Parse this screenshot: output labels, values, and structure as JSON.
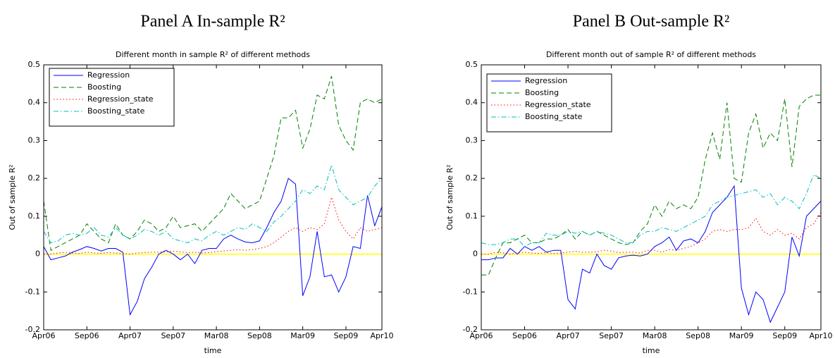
{
  "chart_data": [
    {
      "type": "line",
      "panel_title": "Panel A In-sample R²",
      "title": "Different month in sample R² of different methods",
      "xlabel": "time",
      "ylabel": "Out of sample R²",
      "x": [
        0,
        1,
        2,
        3,
        4,
        5,
        6,
        7,
        8,
        9,
        10,
        11,
        12,
        13,
        14,
        15,
        16,
        17,
        18,
        19,
        20,
        21,
        22,
        23,
        24,
        25,
        26,
        27,
        28,
        29,
        30,
        31,
        32,
        33,
        34,
        35,
        36,
        37,
        38,
        39,
        40,
        41,
        42,
        43,
        44,
        45,
        46,
        47
      ],
      "xlim": [
        0,
        47
      ],
      "xticks": [
        {
          "value": 0,
          "label": "Apr06"
        },
        {
          "value": 6,
          "label": "Sep06"
        },
        {
          "value": 12,
          "label": "Apr07"
        },
        {
          "value": 18,
          "label": "Sep07"
        },
        {
          "value": 24,
          "label": "Mar08"
        },
        {
          "value": 30,
          "label": "Sep08"
        },
        {
          "value": 36,
          "label": "Mar09"
        },
        {
          "value": 42,
          "label": "Sep09"
        },
        {
          "value": 47,
          "label": "Apr10"
        }
      ],
      "ylim": [
        -0.2,
        0.5
      ],
      "yticks": [
        -0.2,
        -0.1,
        0,
        0.1,
        0.2,
        0.3,
        0.4,
        0.5
      ],
      "hline": 0,
      "hline_color": "#ffff00",
      "legend": "upper left",
      "grid": false,
      "series": [
        {
          "name": "Regression",
          "color": "#0000ff",
          "dash": "solid",
          "values": [
            0.02,
            -0.015,
            -0.01,
            -0.005,
            0.005,
            0.012,
            0.02,
            0.015,
            0.008,
            0.015,
            0.015,
            0.005,
            -0.16,
            -0.125,
            -0.065,
            -0.035,
            0.0,
            0.01,
            0.0,
            -0.015,
            0.0,
            -0.025,
            0.01,
            0.015,
            0.015,
            0.04,
            0.05,
            0.04,
            0.032,
            0.03,
            0.035,
            0.07,
            0.11,
            0.14,
            0.2,
            0.185,
            -0.11,
            -0.06,
            0.06,
            -0.06,
            -0.055,
            -0.1,
            -0.06,
            0.02,
            0.015,
            0.155,
            0.075,
            0.125
          ]
        },
        {
          "name": "Boosting",
          "color": "#008000",
          "dash": "dashed",
          "values": [
            0.14,
            0.01,
            0.02,
            0.03,
            0.04,
            0.05,
            0.08,
            0.06,
            0.04,
            0.03,
            0.08,
            0.05,
            0.04,
            0.06,
            0.09,
            0.08,
            0.06,
            0.07,
            0.1,
            0.07,
            0.075,
            0.08,
            0.06,
            0.08,
            0.1,
            0.12,
            0.16,
            0.14,
            0.12,
            0.13,
            0.14,
            0.2,
            0.26,
            0.36,
            0.36,
            0.38,
            0.28,
            0.33,
            0.42,
            0.41,
            0.47,
            0.34,
            0.3,
            0.275,
            0.4,
            0.41,
            0.4,
            0.41
          ]
        },
        {
          "name": "Regression_state",
          "color": "#ff0000",
          "dash": "dotted",
          "values": [
            0.0,
            0.0,
            0.003,
            0.005,
            0.003,
            0.002,
            0.005,
            0.003,
            0.002,
            0.004,
            0.003,
            0.002,
            0.0,
            0.003,
            0.004,
            0.005,
            0.005,
            0.006,
            0.008,
            0.006,
            0.004,
            0.005,
            0.003,
            0.004,
            0.006,
            0.008,
            0.01,
            0.012,
            0.01,
            0.012,
            0.015,
            0.02,
            0.03,
            0.045,
            0.06,
            0.07,
            0.06,
            0.07,
            0.065,
            0.08,
            0.15,
            0.09,
            0.06,
            0.04,
            0.07,
            0.06,
            0.065,
            0.07
          ]
        },
        {
          "name": "Boosting_state",
          "color": "#00bfbf",
          "dash": "dashdot",
          "values": [
            0.06,
            0.03,
            0.035,
            0.05,
            0.055,
            0.05,
            0.055,
            0.07,
            0.05,
            0.045,
            0.07,
            0.05,
            0.04,
            0.05,
            0.065,
            0.06,
            0.05,
            0.06,
            0.04,
            0.035,
            0.03,
            0.04,
            0.035,
            0.05,
            0.06,
            0.05,
            0.06,
            0.07,
            0.065,
            0.08,
            0.07,
            0.06,
            0.085,
            0.1,
            0.12,
            0.14,
            0.17,
            0.16,
            0.18,
            0.17,
            0.235,
            0.17,
            0.15,
            0.13,
            0.14,
            0.15,
            0.18,
            0.2
          ]
        }
      ]
    },
    {
      "type": "line",
      "panel_title": "Panel B Out-sample R²",
      "title": "Different month out of sample R² of different methods",
      "xlabel": "time",
      "ylabel": "Out of sample R²",
      "x": [
        0,
        1,
        2,
        3,
        4,
        5,
        6,
        7,
        8,
        9,
        10,
        11,
        12,
        13,
        14,
        15,
        16,
        17,
        18,
        19,
        20,
        21,
        22,
        23,
        24,
        25,
        26,
        27,
        28,
        29,
        30,
        31,
        32,
        33,
        34,
        35,
        36,
        37,
        38,
        39,
        40,
        41,
        42,
        43,
        44,
        45,
        46,
        47
      ],
      "xlim": [
        0,
        47
      ],
      "xticks": [
        {
          "value": 0,
          "label": "Apr06"
        },
        {
          "value": 6,
          "label": "Sep06"
        },
        {
          "value": 12,
          "label": "Apr07"
        },
        {
          "value": 18,
          "label": "Sep07"
        },
        {
          "value": 24,
          "label": "Mar08"
        },
        {
          "value": 30,
          "label": "Sep08"
        },
        {
          "value": 36,
          "label": "Mar09"
        },
        {
          "value": 42,
          "label": "Sep09"
        },
        {
          "value": 47,
          "label": "Apr10"
        }
      ],
      "ylim": [
        -0.2,
        0.5
      ],
      "yticks": [
        -0.2,
        -0.1,
        0,
        0.1,
        0.2,
        0.3,
        0.4,
        0.5
      ],
      "hline": 0,
      "hline_color": "#ffff00",
      "legend": "upper left",
      "grid": false,
      "series": [
        {
          "name": "Regression",
          "color": "#0000ff",
          "dash": "solid",
          "values": [
            -0.015,
            -0.015,
            -0.01,
            -0.01,
            0.015,
            0.0,
            0.02,
            0.01,
            0.02,
            0.005,
            0.01,
            0.01,
            -0.12,
            -0.145,
            -0.04,
            -0.05,
            0.0,
            -0.03,
            -0.04,
            -0.01,
            -0.005,
            -0.003,
            -0.005,
            0.0,
            0.02,
            0.03,
            0.045,
            0.01,
            0.035,
            0.04,
            0.03,
            0.06,
            0.11,
            0.13,
            0.15,
            0.18,
            -0.09,
            -0.16,
            -0.1,
            -0.12,
            -0.18,
            -0.14,
            -0.1,
            0.045,
            -0.005,
            0.1,
            0.12,
            0.14
          ]
        },
        {
          "name": "Boosting",
          "color": "#008000",
          "dash": "dashed",
          "values": [
            -0.055,
            -0.055,
            -0.01,
            0.03,
            0.03,
            0.04,
            0.05,
            0.03,
            0.03,
            0.04,
            0.04,
            0.05,
            0.065,
            0.04,
            0.06,
            0.05,
            0.06,
            0.05,
            0.04,
            0.03,
            0.025,
            0.03,
            0.06,
            0.08,
            0.13,
            0.1,
            0.14,
            0.12,
            0.13,
            0.12,
            0.15,
            0.25,
            0.32,
            0.25,
            0.4,
            0.2,
            0.19,
            0.32,
            0.37,
            0.28,
            0.32,
            0.3,
            0.41,
            0.23,
            0.39,
            0.41,
            0.42,
            0.42
          ]
        },
        {
          "name": "Regression_state",
          "color": "#ff0000",
          "dash": "dotted",
          "values": [
            0.0,
            0.0,
            0.005,
            0.003,
            0.0,
            0.003,
            0.005,
            0.003,
            0.002,
            0.004,
            0.002,
            0.003,
            0.005,
            0.008,
            0.005,
            0.005,
            0.006,
            0.01,
            0.008,
            0.004,
            0.005,
            0.005,
            0.003,
            0.01,
            0.01,
            0.005,
            0.012,
            0.01,
            0.015,
            0.02,
            0.03,
            0.04,
            0.06,
            0.065,
            0.06,
            0.065,
            0.065,
            0.07,
            0.095,
            0.06,
            0.05,
            0.065,
            0.05,
            0.055,
            0.04,
            0.07,
            0.08,
            0.11
          ]
        },
        {
          "name": "Boosting_state",
          "color": "#00bfbf",
          "dash": "dashdot",
          "values": [
            0.03,
            0.025,
            0.025,
            0.03,
            0.04,
            0.04,
            0.02,
            0.03,
            0.03,
            0.055,
            0.05,
            0.05,
            0.06,
            0.055,
            0.06,
            0.05,
            0.06,
            0.055,
            0.05,
            0.04,
            0.03,
            0.03,
            0.05,
            0.06,
            0.06,
            0.07,
            0.065,
            0.06,
            0.07,
            0.08,
            0.09,
            0.1,
            0.13,
            0.14,
            0.15,
            0.155,
            0.16,
            0.165,
            0.17,
            0.15,
            0.16,
            0.13,
            0.15,
            0.14,
            0.12,
            0.16,
            0.21,
            0.2
          ]
        }
      ]
    }
  ]
}
